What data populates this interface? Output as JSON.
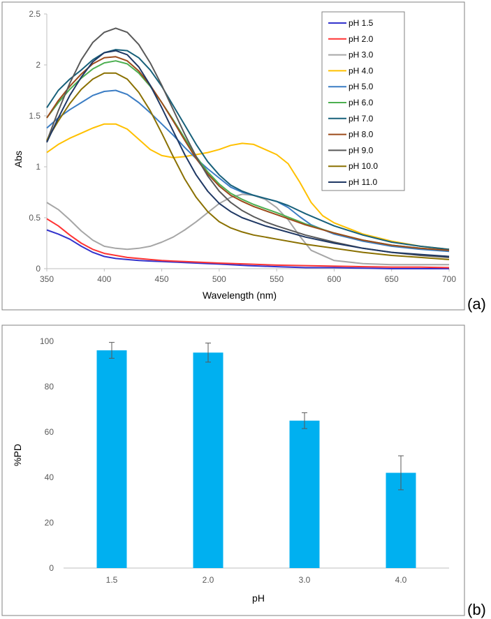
{
  "colors": {
    "bar": "#00b0f0",
    "frame": "#808080",
    "axis": "#bfbfbf",
    "error": "#595959"
  },
  "chart_data": [
    {
      "type": "line",
      "panel_label": "(a)",
      "title": "",
      "xlabel": "Wavelength (nm)",
      "ylabel": "Abs",
      "xlim": [
        350,
        700
      ],
      "ylim": [
        0,
        2.5
      ],
      "xticks": [
        350,
        400,
        450,
        500,
        550,
        600,
        650,
        700
      ],
      "yticks": [
        0,
        0.5,
        1,
        1.5,
        2,
        2.5
      ],
      "ytick_labels": [
        "0",
        "0.5",
        "1",
        "1.5",
        "2",
        "2.5"
      ],
      "grid": false,
      "legend_position": "top-right",
      "series": [
        {
          "name": "pH 1.5",
          "color": "#3333cc",
          "x": [
            350,
            360,
            370,
            380,
            390,
            400,
            410,
            420,
            430,
            440,
            450,
            460,
            470,
            480,
            490,
            500,
            525,
            550,
            575,
            600,
            625,
            650,
            675,
            700
          ],
          "y": [
            0.38,
            0.34,
            0.29,
            0.22,
            0.16,
            0.12,
            0.1,
            0.09,
            0.08,
            0.075,
            0.07,
            0.065,
            0.06,
            0.055,
            0.05,
            0.045,
            0.03,
            0.02,
            0.01,
            0.01,
            0.005,
            0.0,
            0.0,
            0.0
          ]
        },
        {
          "name": "pH 2.0",
          "color": "#ff3333",
          "x": [
            350,
            360,
            370,
            380,
            390,
            400,
            410,
            420,
            430,
            440,
            450,
            460,
            470,
            480,
            490,
            500,
            525,
            550,
            575,
            600,
            625,
            650,
            675,
            700
          ],
          "y": [
            0.49,
            0.42,
            0.33,
            0.25,
            0.19,
            0.15,
            0.13,
            0.11,
            0.1,
            0.09,
            0.08,
            0.075,
            0.07,
            0.065,
            0.06,
            0.055,
            0.045,
            0.035,
            0.03,
            0.025,
            0.02,
            0.015,
            0.015,
            0.01
          ]
        },
        {
          "name": "pH 3.0",
          "color": "#a6a6a6",
          "x": [
            350,
            360,
            370,
            380,
            390,
            400,
            410,
            420,
            430,
            440,
            450,
            460,
            470,
            480,
            490,
            500,
            510,
            520,
            530,
            540,
            550,
            560,
            570,
            580,
            600,
            625,
            650,
            675,
            700
          ],
          "y": [
            0.65,
            0.58,
            0.48,
            0.37,
            0.28,
            0.22,
            0.2,
            0.19,
            0.2,
            0.22,
            0.26,
            0.31,
            0.38,
            0.46,
            0.55,
            0.64,
            0.7,
            0.73,
            0.72,
            0.68,
            0.6,
            0.48,
            0.32,
            0.18,
            0.08,
            0.05,
            0.04,
            0.04,
            0.04
          ]
        },
        {
          "name": "pH 4.0",
          "color": "#ffc000",
          "x": [
            350,
            360,
            370,
            380,
            390,
            400,
            410,
            420,
            430,
            440,
            450,
            460,
            470,
            480,
            490,
            500,
            510,
            520,
            530,
            540,
            550,
            560,
            570,
            580,
            590,
            600,
            625,
            650,
            675,
            700
          ],
          "y": [
            1.14,
            1.22,
            1.28,
            1.33,
            1.38,
            1.42,
            1.42,
            1.37,
            1.27,
            1.17,
            1.11,
            1.09,
            1.1,
            1.12,
            1.14,
            1.17,
            1.21,
            1.23,
            1.22,
            1.17,
            1.12,
            1.03,
            0.85,
            0.65,
            0.52,
            0.45,
            0.34,
            0.27,
            0.22,
            0.19
          ]
        },
        {
          "name": "pH 5.0",
          "color": "#3b7dc4",
          "x": [
            350,
            360,
            370,
            380,
            390,
            400,
            410,
            420,
            430,
            440,
            450,
            460,
            470,
            480,
            490,
            500,
            510,
            520,
            530,
            540,
            550,
            560,
            570,
            580,
            600,
            625,
            650,
            675,
            700
          ],
          "y": [
            1.38,
            1.48,
            1.56,
            1.63,
            1.7,
            1.74,
            1.75,
            1.71,
            1.63,
            1.53,
            1.42,
            1.31,
            1.19,
            1.08,
            0.98,
            0.89,
            0.8,
            0.75,
            0.72,
            0.69,
            0.66,
            0.6,
            0.51,
            0.43,
            0.34,
            0.27,
            0.22,
            0.19,
            0.17
          ]
        },
        {
          "name": "pH 6.0",
          "color": "#4caf50",
          "x": [
            350,
            360,
            370,
            380,
            390,
            400,
            410,
            420,
            430,
            440,
            450,
            460,
            470,
            480,
            490,
            500,
            510,
            520,
            530,
            540,
            550,
            575,
            600,
            625,
            650,
            675,
            700
          ],
          "y": [
            1.48,
            1.63,
            1.76,
            1.87,
            1.96,
            2.02,
            2.04,
            2.01,
            1.92,
            1.79,
            1.63,
            1.46,
            1.28,
            1.1,
            0.95,
            0.83,
            0.74,
            0.68,
            0.63,
            0.59,
            0.55,
            0.44,
            0.35,
            0.28,
            0.23,
            0.2,
            0.18
          ]
        },
        {
          "name": "pH 7.0",
          "color": "#17607a",
          "x": [
            350,
            360,
            370,
            380,
            390,
            400,
            410,
            420,
            430,
            440,
            450,
            460,
            470,
            480,
            490,
            500,
            510,
            520,
            530,
            540,
            550,
            560,
            575,
            600,
            625,
            650,
            675,
            700
          ],
          "y": [
            1.58,
            1.75,
            1.86,
            1.95,
            2.05,
            2.12,
            2.15,
            2.14,
            2.07,
            1.95,
            1.79,
            1.6,
            1.41,
            1.22,
            1.05,
            0.92,
            0.82,
            0.76,
            0.72,
            0.69,
            0.66,
            0.62,
            0.54,
            0.42,
            0.33,
            0.26,
            0.22,
            0.19
          ]
        },
        {
          "name": "pH 8.0",
          "color": "#9c4a1a",
          "x": [
            350,
            360,
            370,
            380,
            390,
            400,
            410,
            420,
            430,
            440,
            450,
            460,
            470,
            480,
            490,
            500,
            510,
            520,
            530,
            540,
            550,
            575,
            600,
            625,
            650,
            675,
            700
          ],
          "y": [
            1.48,
            1.65,
            1.79,
            1.91,
            2.01,
            2.07,
            2.08,
            2.04,
            1.94,
            1.8,
            1.63,
            1.45,
            1.26,
            1.08,
            0.93,
            0.81,
            0.72,
            0.66,
            0.61,
            0.57,
            0.53,
            0.43,
            0.35,
            0.28,
            0.23,
            0.2,
            0.18
          ]
        },
        {
          "name": "pH 9.0",
          "color": "#595959",
          "x": [
            350,
            360,
            370,
            380,
            390,
            400,
            410,
            420,
            430,
            440,
            450,
            460,
            470,
            480,
            490,
            500,
            510,
            520,
            530,
            540,
            550,
            575,
            600,
            625,
            650,
            675,
            700
          ],
          "y": [
            1.25,
            1.55,
            1.82,
            2.05,
            2.22,
            2.32,
            2.36,
            2.32,
            2.2,
            2.02,
            1.8,
            1.56,
            1.32,
            1.1,
            0.91,
            0.76,
            0.65,
            0.57,
            0.51,
            0.46,
            0.42,
            0.33,
            0.26,
            0.2,
            0.16,
            0.13,
            0.11
          ]
        },
        {
          "name": "pH 10.0",
          "color": "#8a7000",
          "x": [
            350,
            360,
            370,
            380,
            390,
            400,
            410,
            420,
            430,
            440,
            450,
            460,
            470,
            480,
            490,
            500,
            510,
            520,
            530,
            540,
            550,
            575,
            600,
            625,
            650,
            675,
            700
          ],
          "y": [
            1.26,
            1.45,
            1.62,
            1.76,
            1.86,
            1.92,
            1.92,
            1.86,
            1.73,
            1.55,
            1.33,
            1.1,
            0.88,
            0.7,
            0.56,
            0.46,
            0.4,
            0.36,
            0.33,
            0.31,
            0.29,
            0.24,
            0.2,
            0.16,
            0.13,
            0.11,
            0.09
          ]
        },
        {
          "name": "pH 11.0",
          "color": "#1f3864",
          "x": [
            350,
            360,
            370,
            380,
            390,
            400,
            410,
            420,
            430,
            440,
            450,
            460,
            470,
            480,
            490,
            500,
            510,
            520,
            530,
            540,
            550,
            575,
            600,
            625,
            650,
            675,
            700
          ],
          "y": [
            1.24,
            1.48,
            1.7,
            1.88,
            2.03,
            2.12,
            2.14,
            2.1,
            1.98,
            1.8,
            1.58,
            1.35,
            1.12,
            0.92,
            0.76,
            0.64,
            0.56,
            0.5,
            0.46,
            0.42,
            0.39,
            0.31,
            0.25,
            0.2,
            0.16,
            0.14,
            0.12
          ]
        }
      ]
    },
    {
      "type": "bar",
      "panel_label": "(b)",
      "title": "",
      "xlabel": "pH",
      "ylabel": "%PD",
      "categories": [
        "1.5",
        "2.0",
        "3.0",
        "4.0"
      ],
      "values": [
        96,
        95,
        65,
        42
      ],
      "error": [
        3.5,
        4.2,
        3.5,
        7.5
      ],
      "ylim": [
        0,
        100
      ],
      "yticks": [
        0,
        20,
        40,
        60,
        80,
        100
      ],
      "grid": false
    }
  ]
}
